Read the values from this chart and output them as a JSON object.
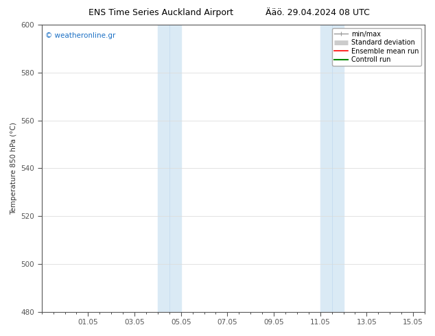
{
  "title_left": "ENS Time Series Auckland Airport",
  "title_right": "Ääö. 29.04.2024 08 UTC",
  "ylabel": "Temperature 850 hPa (°C)",
  "ylim": [
    480,
    600
  ],
  "yticks": [
    480,
    500,
    520,
    540,
    560,
    580,
    600
  ],
  "xtick_labels": [
    "01.05",
    "03.05",
    "05.05",
    "07.05",
    "09.05",
    "11.05",
    "13.05",
    "15.05"
  ],
  "shaded_bands": [
    {
      "x_start": 5.0,
      "x_end": 5.5,
      "color": "#daeaf5"
    },
    {
      "x_start": 5.5,
      "x_end": 6.0,
      "color": "#daeaf5"
    },
    {
      "x_start": 12.0,
      "x_end": 12.5,
      "color": "#daeaf5"
    },
    {
      "x_start": 12.5,
      "x_end": 13.0,
      "color": "#daeaf5"
    }
  ],
  "watermark": "© weatheronline.gr",
  "watermark_color": "#1a6fc4",
  "legend_entries": [
    {
      "label": "min/max",
      "color": "#999999",
      "lw": 1.0
    },
    {
      "label": "Standard deviation",
      "color": "#cccccc",
      "lw": 5
    },
    {
      "label": "Ensemble mean run",
      "color": "#ff0000",
      "lw": 1.2
    },
    {
      "label": "Controll run",
      "color": "#008800",
      "lw": 1.5
    }
  ],
  "background_color": "#ffffff",
  "plot_bg_color": "#ffffff",
  "border_color": "#555555",
  "tick_color": "#555555",
  "title_fontsize": 9,
  "ylabel_fontsize": 7.5,
  "tick_fontsize": 7.5,
  "legend_fontsize": 7,
  "watermark_fontsize": 7.5,
  "xlim": [
    0.0,
    16.5
  ],
  "xtick_positions": [
    2,
    4,
    6,
    8,
    10,
    12,
    14,
    16
  ]
}
